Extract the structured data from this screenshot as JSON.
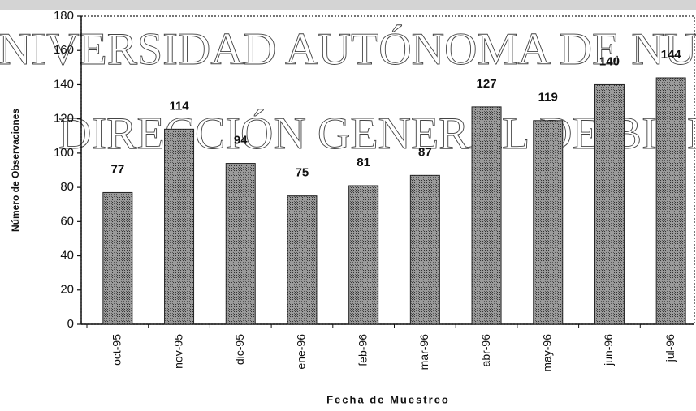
{
  "chart_data": {
    "type": "bar",
    "x_label": "Fecha de Muestreo",
    "y_label": "Número de Observaciones",
    "categories": [
      "oct-95",
      "nov-95",
      "dic-95",
      "ene-96",
      "feb-96",
      "mar-96",
      "abr-96",
      "may-96",
      "jun-96",
      "jul-96"
    ],
    "values": [
      77,
      114,
      94,
      75,
      81,
      87,
      127,
      119,
      140,
      144
    ],
    "color": "#8c8c8c",
    "ylim": [
      0,
      180
    ],
    "yticks": [
      0,
      20,
      40,
      60,
      80,
      100,
      120,
      140,
      160,
      180
    ],
    "watermark": [
      "NIVERSIDAD AUTÓNOMA DE NU",
      "DIRECCIÓN GENERAL DE BIBLIO"
    ]
  }
}
